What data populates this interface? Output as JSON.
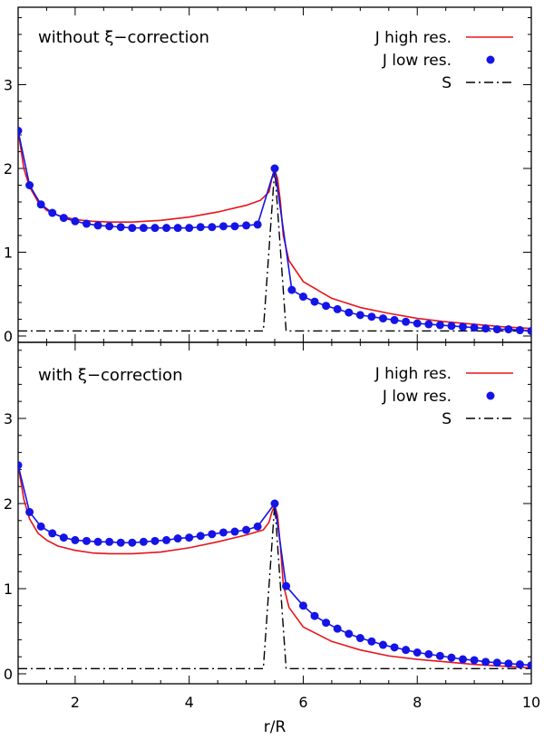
{
  "colors": {
    "high_res": "#e8141b",
    "low_res": "#1414e6",
    "source": "#000000"
  },
  "chart_data": [
    {
      "type": "line",
      "panel": "top",
      "annotation": "without ξ−correction",
      "xlabel": "",
      "ylabel": "",
      "xlim": [
        1,
        10
      ],
      "ylim": [
        0,
        3.9
      ],
      "xticks": [
        "2",
        "4",
        "6",
        "8",
        "10"
      ],
      "xtick_values": [
        2,
        4,
        6,
        8,
        10
      ],
      "yticks": [
        "0",
        "1",
        "2",
        "3"
      ],
      "ytick_values": [
        0,
        1,
        2,
        3
      ],
      "legend": {
        "position": "top-right",
        "entries": [
          "J high res.",
          "J low res.",
          "S"
        ]
      },
      "series": [
        {
          "name": "J high res.",
          "style": "line",
          "x": [
            1.0,
            1.1,
            1.2,
            1.35,
            1.5,
            1.7,
            2.0,
            2.3,
            2.6,
            3.0,
            3.5,
            4.0,
            4.5,
            5.0,
            5.25,
            5.4,
            5.45,
            5.5,
            5.55,
            5.6,
            5.65,
            5.75,
            6.0,
            6.5,
            7.0,
            7.5,
            8.0,
            8.5,
            9.0,
            9.5,
            10.0
          ],
          "y": [
            2.45,
            2.0,
            1.78,
            1.6,
            1.5,
            1.44,
            1.39,
            1.37,
            1.36,
            1.36,
            1.38,
            1.42,
            1.48,
            1.56,
            1.62,
            1.72,
            1.88,
            1.98,
            1.88,
            1.6,
            1.2,
            0.9,
            0.65,
            0.45,
            0.34,
            0.27,
            0.21,
            0.17,
            0.14,
            0.11,
            0.09
          ]
        },
        {
          "name": "J low res.",
          "style": "line+markers",
          "x": [
            1.0,
            1.2,
            1.4,
            1.6,
            1.8,
            2.0,
            2.2,
            2.4,
            2.6,
            2.8,
            3.0,
            3.2,
            3.4,
            3.6,
            3.8,
            4.0,
            4.2,
            4.4,
            4.6,
            4.8,
            5.0,
            5.2,
            5.5,
            5.8,
            6.0,
            6.2,
            6.4,
            6.6,
            6.8,
            7.0,
            7.2,
            7.4,
            7.6,
            7.8,
            8.0,
            8.2,
            8.4,
            8.6,
            8.8,
            9.0,
            9.2,
            9.4,
            9.6,
            9.8,
            10.0
          ],
          "y": [
            2.45,
            1.8,
            1.57,
            1.47,
            1.41,
            1.37,
            1.34,
            1.32,
            1.31,
            1.3,
            1.29,
            1.29,
            1.29,
            1.29,
            1.29,
            1.29,
            1.3,
            1.3,
            1.31,
            1.31,
            1.32,
            1.33,
            2.0,
            0.55,
            0.47,
            0.41,
            0.36,
            0.32,
            0.28,
            0.25,
            0.23,
            0.21,
            0.19,
            0.17,
            0.15,
            0.14,
            0.13,
            0.12,
            0.11,
            0.1,
            0.09,
            0.08,
            0.08,
            0.07,
            0.06
          ]
        },
        {
          "name": "S",
          "style": "dash-dot",
          "x": [
            1.0,
            5.3,
            5.5,
            5.7,
            10.0
          ],
          "y": [
            0.06,
            0.06,
            2.0,
            0.06,
            0.06
          ]
        }
      ]
    },
    {
      "type": "line",
      "panel": "bottom",
      "annotation": "with ξ−correction",
      "xlabel": "r/R",
      "ylabel": "",
      "xlim": [
        1,
        10
      ],
      "ylim": [
        0,
        3.9
      ],
      "xticks": [
        "2",
        "4",
        "6",
        "8",
        "10"
      ],
      "xtick_values": [
        2,
        4,
        6,
        8,
        10
      ],
      "yticks": [
        "0",
        "1",
        "2",
        "3"
      ],
      "ytick_values": [
        0,
        1,
        2,
        3
      ],
      "legend": {
        "position": "top-right",
        "entries": [
          "J high res.",
          "J low res.",
          "S"
        ]
      },
      "series": [
        {
          "name": "J high res.",
          "style": "line",
          "x": [
            1.0,
            1.1,
            1.2,
            1.35,
            1.5,
            1.7,
            2.0,
            2.3,
            2.6,
            3.0,
            3.5,
            4.0,
            4.5,
            5.0,
            5.3,
            5.4,
            5.45,
            5.5,
            5.55,
            5.6,
            5.65,
            5.75,
            6.0,
            6.5,
            7.0,
            7.5,
            8.0,
            8.5,
            9.0,
            9.5,
            10.0
          ],
          "y": [
            2.45,
            2.05,
            1.82,
            1.65,
            1.57,
            1.5,
            1.45,
            1.42,
            1.41,
            1.41,
            1.43,
            1.48,
            1.55,
            1.63,
            1.69,
            1.78,
            1.9,
            1.98,
            1.86,
            1.5,
            1.05,
            0.78,
            0.55,
            0.38,
            0.28,
            0.21,
            0.17,
            0.14,
            0.11,
            0.09,
            0.07
          ]
        },
        {
          "name": "J low res.",
          "style": "line+markers",
          "x": [
            1.0,
            1.2,
            1.4,
            1.6,
            1.8,
            2.0,
            2.2,
            2.4,
            2.6,
            2.8,
            3.0,
            3.2,
            3.4,
            3.6,
            3.8,
            4.0,
            4.2,
            4.4,
            4.6,
            4.8,
            5.0,
            5.2,
            5.5,
            5.7,
            6.0,
            6.2,
            6.4,
            6.6,
            6.8,
            7.0,
            7.2,
            7.4,
            7.6,
            7.8,
            8.0,
            8.2,
            8.4,
            8.6,
            8.8,
            9.0,
            9.2,
            9.4,
            9.6,
            9.8,
            10.0
          ],
          "y": [
            2.45,
            1.9,
            1.73,
            1.65,
            1.6,
            1.57,
            1.56,
            1.55,
            1.55,
            1.54,
            1.54,
            1.55,
            1.56,
            1.57,
            1.59,
            1.6,
            1.62,
            1.64,
            1.66,
            1.67,
            1.69,
            1.73,
            2.0,
            1.03,
            0.8,
            0.68,
            0.6,
            0.53,
            0.47,
            0.42,
            0.38,
            0.34,
            0.31,
            0.28,
            0.25,
            0.23,
            0.21,
            0.19,
            0.17,
            0.16,
            0.14,
            0.13,
            0.12,
            0.11,
            0.1
          ]
        },
        {
          "name": "S",
          "style": "dash-dot",
          "x": [
            1.0,
            5.3,
            5.5,
            5.7,
            10.0
          ],
          "y": [
            0.06,
            0.06,
            2.0,
            0.06,
            0.06
          ]
        }
      ]
    }
  ]
}
